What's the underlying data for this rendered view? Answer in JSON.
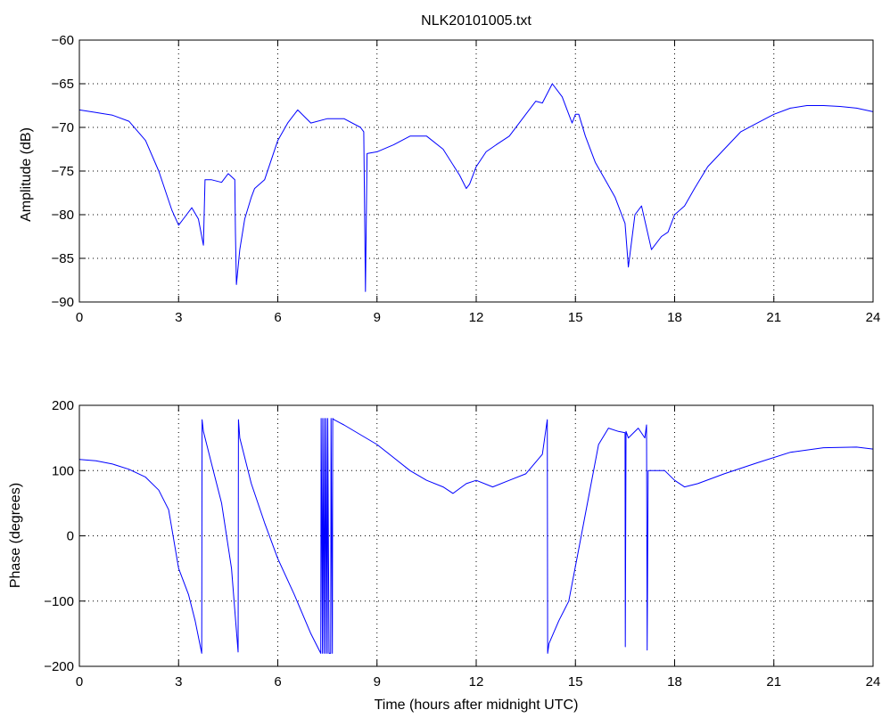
{
  "chart_data": [
    {
      "type": "line",
      "title": "NLK20101005.txt",
      "xlabel": "",
      "ylabel": "Amplitude (dB)",
      "xlim": [
        0,
        24
      ],
      "ylim": [
        -90,
        -60
      ],
      "xticks": [
        0,
        3,
        6,
        9,
        12,
        15,
        18,
        21,
        24
      ],
      "yticks": [
        -90,
        -85,
        -80,
        -75,
        -70,
        -65,
        -60
      ],
      "grid": true,
      "color": "#0000ff",
      "x": [
        0,
        0.5,
        1,
        1.5,
        2,
        2.4,
        2.8,
        3.0,
        3.2,
        3.4,
        3.6,
        3.75,
        3.8,
        4.0,
        4.3,
        4.5,
        4.7,
        4.72,
        4.75,
        4.85,
        5.0,
        5.2,
        5.3,
        5.6,
        6.0,
        6.3,
        6.6,
        7.0,
        7.5,
        8.0,
        8.5,
        8.6,
        8.65,
        8.7,
        9.0,
        9.5,
        10.0,
        10.5,
        11.0,
        11.5,
        11.7,
        11.8,
        12.0,
        12.3,
        12.6,
        13.0,
        13.5,
        13.8,
        14.0,
        14.3,
        14.6,
        14.9,
        15.0,
        15.1,
        15.3,
        15.6,
        15.9,
        16.2,
        16.5,
        16.6,
        16.8,
        17.0,
        17.3,
        17.6,
        17.8,
        18.0,
        18.3,
        18.6,
        19.0,
        19.5,
        20.0,
        20.5,
        21.0,
        21.5,
        22.0,
        22.5,
        23.0,
        23.5,
        24.0
      ],
      "y": [
        -68,
        -68.3,
        -68.6,
        -69.3,
        -71.5,
        -75,
        -79.5,
        -81.2,
        -80.2,
        -79.2,
        -80.5,
        -83.5,
        -76,
        -76,
        -76.3,
        -75.3,
        -76,
        -82,
        -88,
        -84,
        -80.5,
        -78,
        -77,
        -76,
        -71.5,
        -69.5,
        -68,
        -69.5,
        -69,
        -69,
        -70,
        -70.5,
        -88.8,
        -73,
        -72.8,
        -72,
        -71,
        -71,
        -72.5,
        -75.5,
        -77,
        -76.5,
        -74.5,
        -72.8,
        -72,
        -71,
        -68.5,
        -67,
        -67.2,
        -65,
        -66.5,
        -69.5,
        -68.5,
        -68.5,
        -71,
        -74,
        -76,
        -78,
        -81,
        -86,
        -80,
        -79,
        -84,
        -82.5,
        -82,
        -80,
        -79,
        -77,
        -74.5,
        -72.5,
        -70.5,
        -69.5,
        -68.5,
        -67.8,
        -67.5,
        -67.5,
        -67.6,
        -67.8,
        -68.2
      ]
    },
    {
      "type": "line",
      "title": "",
      "xlabel": "Time (hours after midnight UTC)",
      "ylabel": "Phase (degrees)",
      "xlim": [
        0,
        24
      ],
      "ylim": [
        -200,
        200
      ],
      "xticks": [
        0,
        3,
        6,
        9,
        12,
        15,
        18,
        21,
        24
      ],
      "yticks": [
        -200,
        -100,
        0,
        100,
        200
      ],
      "grid": true,
      "color": "#0000ff",
      "x": [
        0,
        0.5,
        1,
        1.5,
        2,
        2.4,
        2.7,
        3.0,
        3.3,
        3.5,
        3.7,
        3.71,
        3.75,
        4.0,
        4.3,
        4.6,
        4.8,
        4.81,
        4.85,
        5.2,
        5.6,
        6.0,
        6.5,
        7.0,
        7.3,
        7.31,
        7.35,
        7.36,
        7.4,
        7.41,
        7.45,
        7.46,
        7.5,
        7.51,
        7.55,
        7.6,
        7.61,
        7.65,
        7.66,
        7.7,
        8.0,
        8.5,
        9.0,
        9.5,
        10.0,
        10.5,
        11.0,
        11.3,
        11.7,
        12.0,
        12.5,
        13.0,
        13.5,
        14.0,
        14.15,
        14.16,
        14.2,
        14.5,
        14.8,
        15.1,
        15.4,
        15.7,
        16.0,
        16.3,
        16.5,
        16.51,
        16.53,
        16.6,
        16.9,
        17.1,
        17.15,
        17.17,
        17.2,
        17.4,
        17.7,
        18.0,
        18.3,
        18.7,
        19.5,
        20.5,
        21.5,
        22.5,
        23.5,
        24.0
      ],
      "y": [
        117,
        115,
        110,
        102,
        90,
        70,
        40,
        -50,
        -90,
        -130,
        -180,
        178,
        160,
        110,
        50,
        -50,
        -178,
        178,
        150,
        80,
        20,
        -35,
        -90,
        -150,
        -180,
        180,
        -180,
        180,
        -180,
        180,
        -180,
        180,
        -180,
        180,
        -180,
        -180,
        180,
        -180,
        180,
        178,
        170,
        155,
        140,
        120,
        100,
        85,
        75,
        65,
        80,
        85,
        75,
        85,
        95,
        125,
        178,
        -180,
        -165,
        -130,
        -100,
        -20,
        60,
        140,
        165,
        160,
        158,
        -170,
        160,
        150,
        165,
        150,
        170,
        -175,
        100,
        100,
        100,
        85,
        75,
        80,
        95,
        112,
        128,
        135,
        136,
        133
      ]
    }
  ]
}
